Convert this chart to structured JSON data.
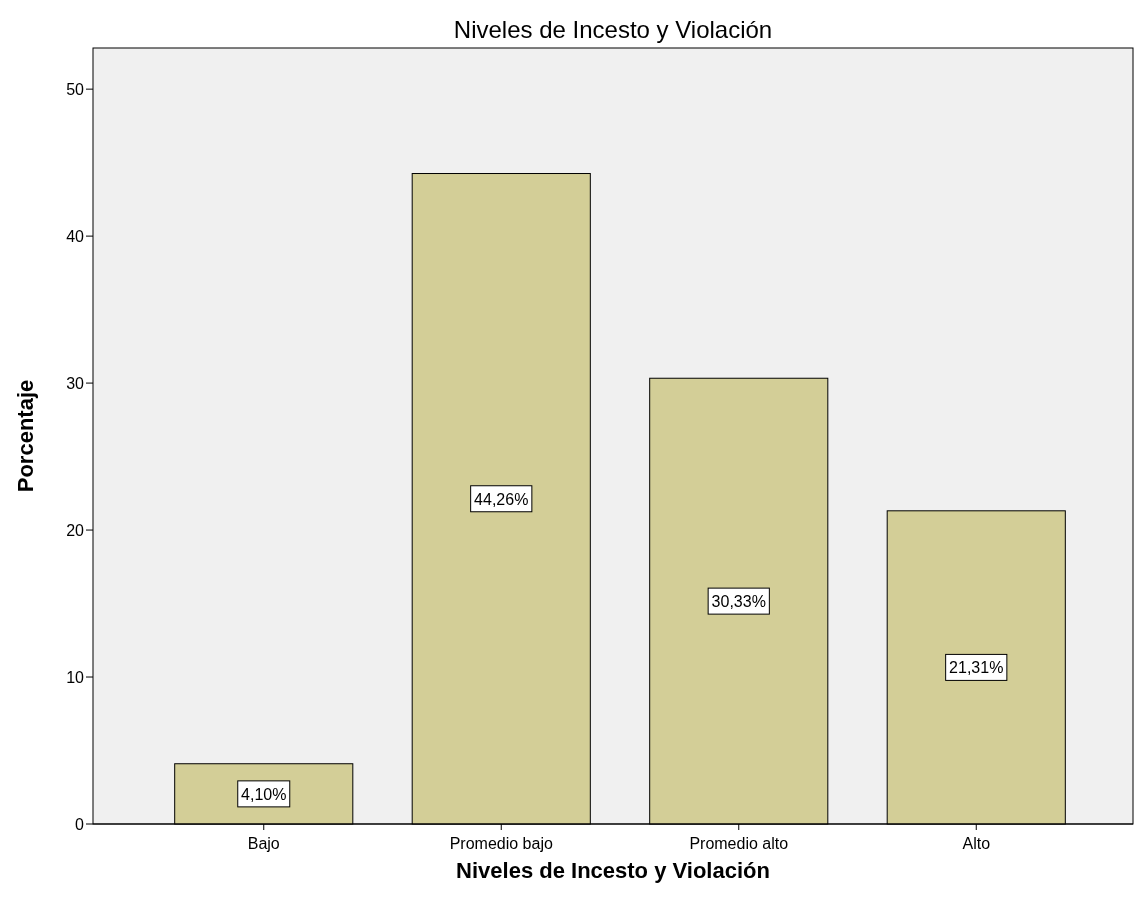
{
  "chart_data": {
    "type": "bar",
    "title": "Niveles de Incesto y Violación",
    "xlabel": "Niveles de Incesto y Violación",
    "ylabel": "Porcentaje",
    "categories": [
      "Bajo",
      "Promedio bajo",
      "Promedio alto",
      "Alto"
    ],
    "values": [
      4.1,
      44.26,
      30.33,
      21.31
    ],
    "value_labels": [
      "4,10%",
      "44,26%",
      "30,33%",
      "21,31%"
    ],
    "color": "#d3ce97",
    "ylim": [
      0,
      52.8
    ],
    "yticks": [
      0,
      10,
      20,
      30,
      40,
      50
    ],
    "grid": false
  }
}
